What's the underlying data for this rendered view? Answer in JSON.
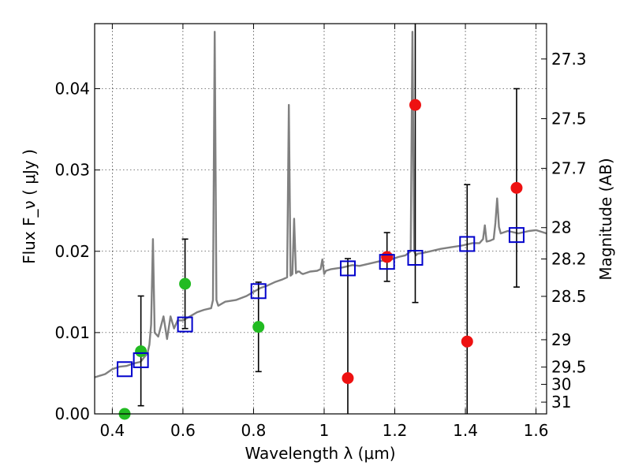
{
  "chart_data": {
    "type": "scatter",
    "xlabel": "Wavelength  λ (μm)",
    "ylabel": "Flux  F_ν  ( μJy )",
    "ylabel_right": "Magnitude (AB)",
    "xlim": [
      0.35,
      1.63
    ],
    "ylim": [
      0.0,
      0.048
    ],
    "x_ticks": [
      {
        "value": 0.4,
        "label": "0.4"
      },
      {
        "value": 0.6,
        "label": "0.6"
      },
      {
        "value": 0.8,
        "label": "0.8"
      },
      {
        "value": 1.0,
        "label": "1"
      },
      {
        "value": 1.2,
        "label": "1.2"
      },
      {
        "value": 1.4,
        "label": "1.4"
      },
      {
        "value": 1.6,
        "label": "1.6"
      }
    ],
    "y_ticks": [
      {
        "value": 0.0,
        "label": "0.00"
      },
      {
        "value": 0.01,
        "label": "0.01"
      },
      {
        "value": 0.02,
        "label": "0.02"
      },
      {
        "value": 0.03,
        "label": "0.03"
      },
      {
        "value": 0.04,
        "label": "0.04"
      }
    ],
    "right_ticks": [
      {
        "mag": 27.3,
        "label": "27.3"
      },
      {
        "mag": 27.5,
        "label": "27.5"
      },
      {
        "mag": 27.7,
        "label": "27.7"
      },
      {
        "mag": 28,
        "label": "28"
      },
      {
        "mag": 28.2,
        "label": "28.2"
      },
      {
        "mag": 28.5,
        "label": "28.5"
      },
      {
        "mag": 29,
        "label": "29"
      },
      {
        "mag": 29.5,
        "label": "29.5"
      },
      {
        "mag": 30,
        "label": "30"
      },
      {
        "mag": 31,
        "label": "31"
      }
    ],
    "series": [
      {
        "name": "Model spectrum",
        "color": "#808080",
        "kind": "line",
        "x": [
          0.35,
          0.38,
          0.4,
          0.42,
          0.44,
          0.46,
          0.48,
          0.5,
          0.505,
          0.51,
          0.515,
          0.52,
          0.53,
          0.545,
          0.555,
          0.565,
          0.575,
          0.585,
          0.6,
          0.62,
          0.64,
          0.66,
          0.68,
          0.685,
          0.69,
          0.695,
          0.7,
          0.72,
          0.75,
          0.78,
          0.8,
          0.82,
          0.84,
          0.86,
          0.88,
          0.895,
          0.9,
          0.905,
          0.91,
          0.915,
          0.92,
          0.925,
          0.93,
          0.935,
          0.94,
          0.96,
          0.98,
          0.99,
          0.995,
          1.0,
          1.005,
          1.02,
          1.05,
          1.08,
          1.1,
          1.13,
          1.16,
          1.19,
          1.21,
          1.23,
          1.245,
          1.25,
          1.255,
          1.26,
          1.265,
          1.28,
          1.3,
          1.33,
          1.36,
          1.39,
          1.42,
          1.44,
          1.45,
          1.455,
          1.46,
          1.47,
          1.48,
          1.485,
          1.49,
          1.495,
          1.5,
          1.52,
          1.55,
          1.58,
          1.6,
          1.63
        ],
        "y": [
          0.0045,
          0.0049,
          0.0055,
          0.0058,
          0.0059,
          0.0062,
          0.0064,
          0.0075,
          0.0085,
          0.011,
          0.0215,
          0.01,
          0.0095,
          0.012,
          0.0092,
          0.012,
          0.0105,
          0.0115,
          0.0115,
          0.012,
          0.0125,
          0.0128,
          0.013,
          0.014,
          0.047,
          0.014,
          0.0133,
          0.0138,
          0.014,
          0.0145,
          0.015,
          0.0155,
          0.0158,
          0.0162,
          0.0165,
          0.0168,
          0.038,
          0.017,
          0.0172,
          0.024,
          0.0173,
          0.0175,
          0.0175,
          0.0173,
          0.0172,
          0.0175,
          0.0176,
          0.0178,
          0.019,
          0.0172,
          0.0176,
          0.0178,
          0.018,
          0.0183,
          0.0182,
          0.0185,
          0.0188,
          0.019,
          0.0193,
          0.0195,
          0.02,
          0.047,
          0.02,
          0.0195,
          0.0197,
          0.0198,
          0.02,
          0.0203,
          0.0205,
          0.0207,
          0.021,
          0.021,
          0.0215,
          0.0232,
          0.0212,
          0.0213,
          0.0215,
          0.0235,
          0.0265,
          0.023,
          0.0222,
          0.0225,
          0.0222,
          0.0225,
          0.0226,
          0.0222
        ]
      },
      {
        "name": "Green detections",
        "color": "#22bb22",
        "kind": "points",
        "x": [
          0.435,
          0.481,
          0.606,
          0.814
        ],
        "y": [
          0.0,
          0.0077,
          0.016,
          0.0107
        ],
        "yerr_low": [
          0.0,
          0.0067,
          0.0055,
          0.0055
        ],
        "yerr_high": [
          0.0,
          0.0068,
          0.0055,
          0.0055
        ]
      },
      {
        "name": "Red detections",
        "color": "#ee1111",
        "kind": "points",
        "x": [
          1.067,
          1.178,
          1.258,
          1.405,
          1.545
        ],
        "y": [
          0.0044,
          0.0193,
          0.038,
          0.0089,
          0.0278
        ],
        "yerr_low": [
          0.0044,
          0.003,
          0.0243,
          0.0089,
          0.0122
        ],
        "yerr_high": [
          0.0147,
          0.003,
          0.012,
          0.0193,
          0.0122
        ]
      },
      {
        "name": "Model photometry",
        "color": "#0000cc",
        "kind": "squares",
        "x": [
          0.435,
          0.481,
          0.606,
          0.814,
          1.067,
          1.178,
          1.258,
          1.405,
          1.545
        ],
        "y": [
          0.0055,
          0.0066,
          0.011,
          0.0151,
          0.0179,
          0.0187,
          0.0192,
          0.0209,
          0.022
        ]
      }
    ]
  }
}
